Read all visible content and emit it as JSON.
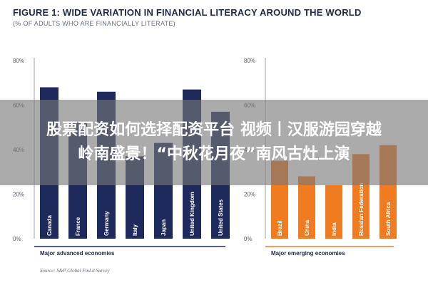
{
  "figure": {
    "title": "FIGURE 1: WIDE VARIATION IN FINANCIAL LITERACY AROUND THE WORLD",
    "subtitle": "(% OF ADULTS WHO ARE FINANCIALLY LITERATE)",
    "source": "Source: S&P Global FinLit Survey"
  },
  "overlay": {
    "line1": "股票配资如何选择配资平台 视频丨汉服游园穿越",
    "line2": "岭南盛景！“中秋花月夜”南风古灶上演"
  },
  "colors": {
    "advanced": "#1f2a5c",
    "emerging": "#f07c22",
    "axis": "#9aa0aa",
    "banner": "#787878"
  },
  "chart_data": [
    {
      "type": "bar",
      "group_label": "Major advanced economies",
      "categories": [
        "Canada",
        "France",
        "Germany",
        "Italy",
        "Japan",
        "United Kingdom",
        "United States"
      ],
      "values": [
        68,
        52,
        66,
        37,
        43,
        67,
        57
      ],
      "ylim": [
        0,
        80
      ],
      "yticks": [
        "0%",
        "20%",
        "40%",
        "60%",
        "80%"
      ],
      "color_key": "advanced"
    },
    {
      "type": "bar",
      "group_label": "Major emerging economies",
      "categories": [
        "Brazil",
        "China",
        "India",
        "Russian Federation",
        "South Africa"
      ],
      "values": [
        35,
        28,
        24,
        38,
        42
      ],
      "ylim": [
        0,
        80
      ],
      "yticks": [
        "0%",
        "20%",
        "40%",
        "60%",
        "80%"
      ],
      "color_key": "emerging"
    }
  ]
}
